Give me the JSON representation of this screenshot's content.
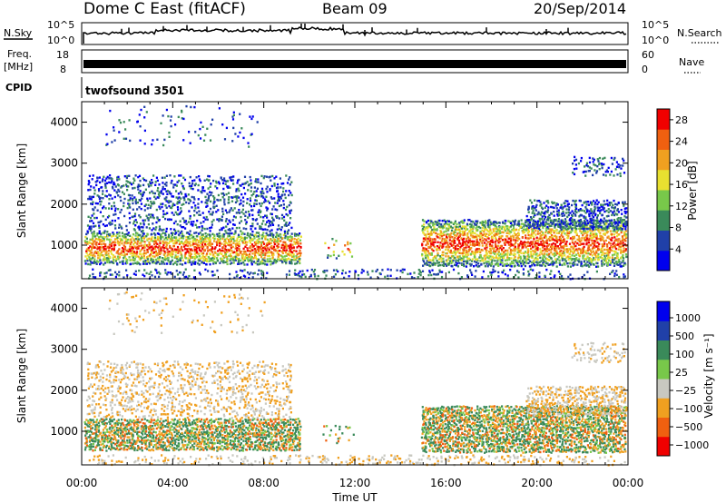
{
  "header": {
    "station": "Dome C East (fitACF)",
    "beam": "Beam 09",
    "date": "20/Sep/2014"
  },
  "side_labels": {
    "nsky": "N.Sky",
    "nsearch": "N.Search",
    "freq": "Freq.",
    "freq_unit": "[MHz]",
    "nave": "Nave",
    "cpid": "CPID"
  },
  "strip_ticks": {
    "noise_left": [
      "10^5",
      "10^0"
    ],
    "noise_right": [
      "10^5",
      "10^0"
    ],
    "freq_left": [
      "18",
      "8"
    ],
    "nave_right": [
      "60",
      "0"
    ]
  },
  "cpid_name": "twofsound 3501",
  "colors": {
    "power": [
      "#0000ee",
      "#2040a8",
      "#3a8a5a",
      "#78c84a",
      "#e8e030",
      "#f0a020",
      "#f06010",
      "#f00000"
    ],
    "velocity": [
      "#f00000",
      "#f06010",
      "#f0a020",
      "#c8c8c0",
      "#78c84a",
      "#3a8a5a",
      "#2040a8",
      "#0000ee"
    ]
  },
  "chart_data": [
    {
      "type": "heatmap",
      "panel": "power",
      "ylabel": "Slant Range [km]",
      "yticks": [
        "1000",
        "2000",
        "3000",
        "4000"
      ],
      "ylim": [
        180,
        4500
      ],
      "xlim": [
        "00:00",
        "24:00"
      ],
      "colorbar": {
        "label": "Power [dB]",
        "ticks": [
          "4",
          "8",
          "12",
          "16",
          "20",
          "24",
          "28"
        ],
        "range": [
          0,
          30
        ]
      }
    },
    {
      "type": "heatmap",
      "panel": "velocity",
      "ylabel": "Slant Range [km]",
      "yticks": [
        "1000",
        "2000",
        "3000",
        "4000"
      ],
      "ylim": [
        180,
        4500
      ],
      "xlim": [
        "00:00",
        "24:00"
      ],
      "colorbar": {
        "label": "Velocity [m s⁻¹]",
        "ticks": [
          "1000",
          "500",
          "100",
          "25",
          "−25",
          "−100",
          "−500",
          "−1000"
        ]
      }
    }
  ],
  "xaxis": {
    "label": "Time UT",
    "ticks": [
      "00:00",
      "04:00",
      "08:00",
      "12:00",
      "16:00",
      "20:00",
      "00:00"
    ]
  }
}
